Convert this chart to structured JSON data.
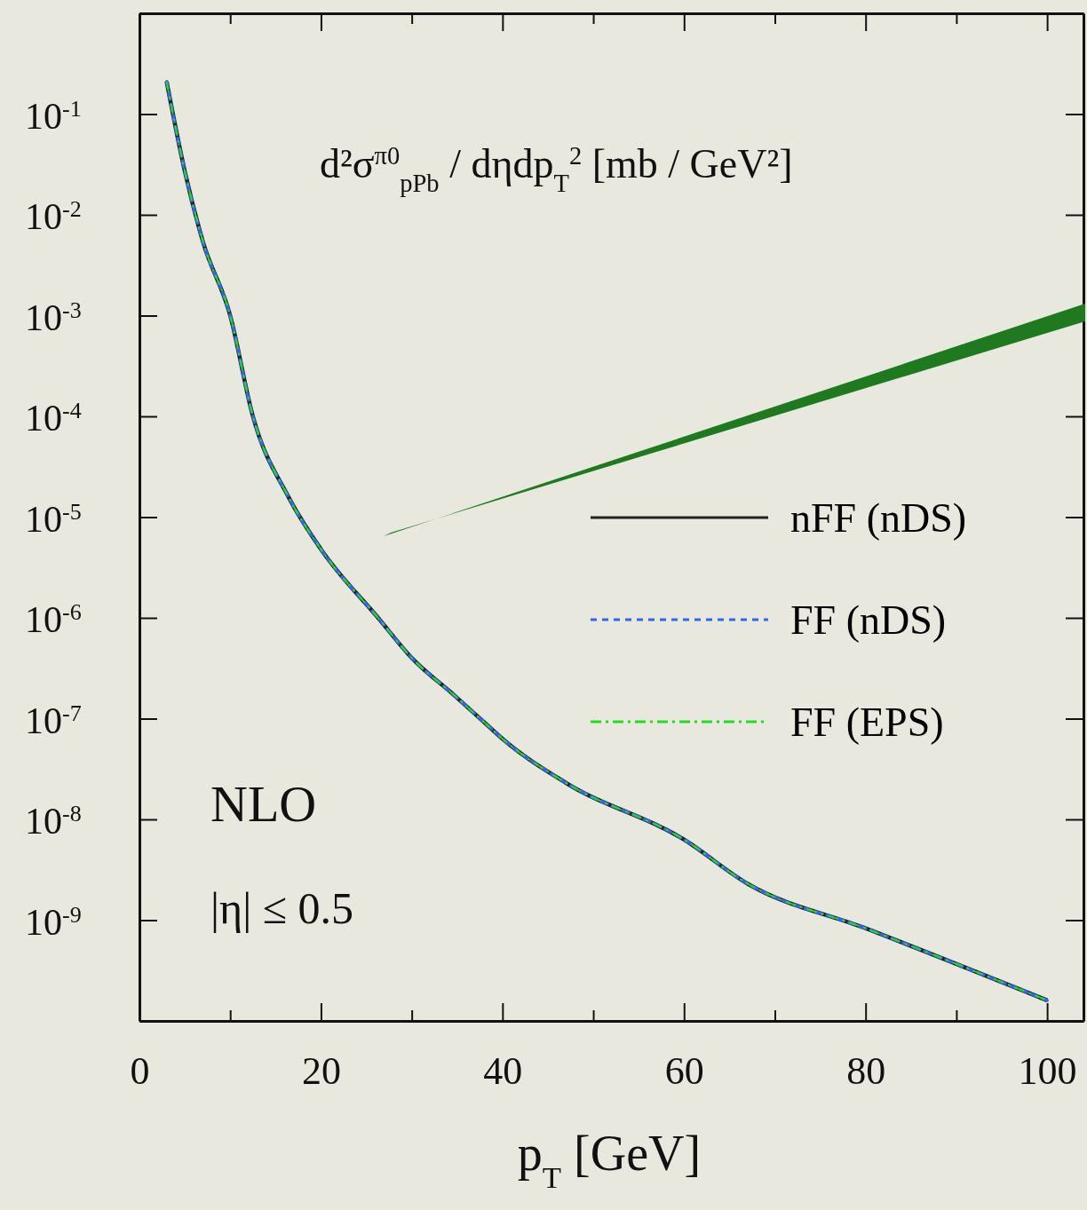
{
  "chart_data": {
    "type": "line",
    "xlabel": "p$_{T}$ [GeV]",
    "annotations": [
      "d²σ$^{π0}$$_{pPb}$ / dηdp$_{T}$$^{2}$  [mb / GeV²]",
      "NLO",
      "|η| ≤ 0.5"
    ],
    "x": [
      3,
      5,
      7,
      10,
      12.5,
      16.4,
      20,
      26.3,
      30,
      34.7,
      38.4,
      40,
      47,
      60,
      67,
      80,
      100
    ],
    "series": [
      {
        "name": "nFF (nDS)",
        "color": "#222222",
        "line_style": "solid",
        "values": [
          0.21,
          0.027,
          0.0054,
          0.001,
          0.0001,
          1.6e-05,
          4.8e-06,
          1e-06,
          4e-07,
          1.7e-07,
          8.5e-08,
          6.3e-08,
          2.3e-08,
          6.3e-09,
          2.3e-09,
          8.3e-10,
          1.6e-10
        ]
      },
      {
        "name": "FF (nDS)",
        "color": "#3366ee",
        "line_style": "dashed",
        "values": [
          0.21,
          0.027,
          0.0054,
          0.001,
          0.0001,
          1.6e-05,
          4.8e-06,
          1e-06,
          4e-07,
          1.7e-07,
          8.5e-08,
          6.3e-08,
          2.3e-08,
          6.3e-09,
          2.3e-09,
          8.3e-10,
          1.6e-10
        ]
      },
      {
        "name": "FF (EPS)",
        "color": "#22dd22",
        "line_style": "dashdot",
        "values": [
          0.21,
          0.027,
          0.0054,
          0.001,
          0.0001,
          1.6e-05,
          4.8e-06,
          1e-06,
          4e-07,
          1.7e-07,
          8.5e-08,
          6.3e-08,
          2.3e-08,
          6.3e-09,
          2.3e-09,
          8.3e-10,
          1.6e-10
        ]
      }
    ],
    "log": "y",
    "xlim": [
      0,
      104
    ],
    "ylim": [
      1e-10,
      1
    ],
    "xticks": [
      0,
      {
        "value": 10,
        "label": null
      },
      20,
      {
        "value": 30,
        "label": null
      },
      40,
      {
        "value": 50,
        "label": null
      },
      60,
      {
        "value": 70,
        "label": null
      },
      80,
      {
        "value": 90,
        "label": null
      },
      100
    ],
    "yticks": [
      {
        "value": 0.1,
        "label": "10$^{-1}$"
      },
      {
        "value": 0.01,
        "label": "10$^{-2}$"
      },
      {
        "value": 0.001,
        "label": "10$^{-3}$"
      },
      {
        "value": 0.0001,
        "label": "10$^{-4}$"
      },
      {
        "value": 1e-05,
        "label": "10$^{-5}$"
      },
      {
        "value": 1e-06,
        "label": "10$^{-6}$"
      },
      {
        "value": 1e-07,
        "label": "10$^{-7}$"
      },
      {
        "value": 1e-08,
        "label": "10$^{-8}$"
      },
      {
        "value": 1e-09,
        "label": "10$^{-9}$"
      }
    ],
    "legend": "right",
    "grid": false
  }
}
